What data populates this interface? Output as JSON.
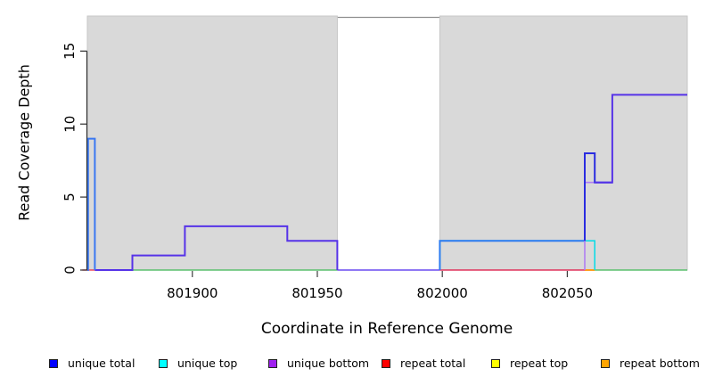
{
  "chart_data": {
    "type": "line",
    "subtype": "step-coverage",
    "title": "",
    "xlabel": "Coordinate in Reference Genome",
    "ylabel": "Read Coverage Depth",
    "xlim": [
      801858,
      802098
    ],
    "ylim": [
      0,
      17.4
    ],
    "xticks": [
      801900,
      801950,
      802000,
      802050
    ],
    "yticks": [
      0,
      5,
      10,
      15
    ],
    "grid": false,
    "shaded_regions": {
      "color": "#d9d9d9",
      "border_color": "#c6c6c6",
      "ranges": [
        [
          801858,
          801958
        ],
        [
          801999,
          802098
        ]
      ]
    },
    "gap_region": [
      801958,
      801999
    ],
    "top_line_color": "#8f8f8f",
    "series": [
      {
        "name": "unique total",
        "color": "#0000FF",
        "step_points": [
          [
            801858,
            9
          ],
          [
            801861,
            0
          ],
          [
            801876,
            1
          ],
          [
            801897,
            3
          ],
          [
            801938,
            2
          ],
          [
            801958,
            0
          ],
          [
            801999,
            2
          ],
          [
            802057,
            8
          ],
          [
            802061,
            6
          ],
          [
            802068,
            12
          ]
        ],
        "end": 802098
      },
      {
        "name": "unique top",
        "color": "#00FFFF",
        "step_points": [
          [
            801858,
            9
          ],
          [
            801861,
            0
          ],
          [
            801999,
            2
          ],
          [
            802061,
            0
          ]
        ],
        "end": 802098
      },
      {
        "name": "unique bottom",
        "color": "#A020F0",
        "step_points": [
          [
            801858,
            0
          ],
          [
            801876,
            1
          ],
          [
            801897,
            3
          ],
          [
            801938,
            2
          ],
          [
            801958,
            0
          ],
          [
            802057,
            6
          ],
          [
            802068,
            12
          ]
        ],
        "end": 802098
      },
      {
        "name": "repeat total",
        "color": "#FF0000",
        "step_points": [
          [
            801858,
            0
          ]
        ],
        "end": 802098
      },
      {
        "name": "repeat top",
        "color": "#FFFF00",
        "step_points": [
          [
            801858,
            0
          ]
        ],
        "end": 802098
      },
      {
        "name": "repeat bottom",
        "color": "#FFA500",
        "step_points": [
          [
            801858,
            0
          ]
        ],
        "end": 802098
      }
    ],
    "draw_lines": [
      {
        "name": "baseline-red-left",
        "color": "#ef3b4c",
        "width": 1.4,
        "points": [
          [
            801856,
            0
          ]
        ],
        "end": 801861
      },
      {
        "name": "baseline-green-left",
        "color": "#5abf6e",
        "width": 1.4,
        "points": [
          [
            801861,
            0
          ]
        ],
        "end": 801958
      },
      {
        "name": "gap-zero-violet",
        "color": "#6a4af0",
        "width": 1.6,
        "points": [
          [
            801958,
            0
          ]
        ],
        "end": 801999
      },
      {
        "name": "baseline-red-right",
        "color": "#e0335c",
        "width": 1.4,
        "points": [
          [
            801999,
            0
          ]
        ],
        "end": 802057
      },
      {
        "name": "baseline-orange",
        "color": "#ff9d1c",
        "width": 2,
        "points": [
          [
            802057,
            0
          ]
        ],
        "end": 802061
      },
      {
        "name": "baseline-green-right",
        "color": "#5abf6e",
        "width": 1.4,
        "points": [
          [
            802061,
            0
          ]
        ],
        "end": 802098
      },
      {
        "name": "cyan-top-right",
        "color": "#10dce6",
        "width": 1.6,
        "points": [
          [
            801999,
            0
          ],
          [
            801999,
            2
          ],
          [
            802061,
            0
          ]
        ],
        "end": null
      },
      {
        "name": "blue-total-2level",
        "color": "#2e7bf0",
        "width": 2,
        "points": [
          [
            801999,
            0
          ],
          [
            801999,
            2
          ]
        ],
        "end": 802057
      },
      {
        "name": "violet-bottom-6step",
        "color": "#b07ef2",
        "width": 1.6,
        "points": [
          [
            802057,
            0
          ],
          [
            802057,
            6
          ]
        ],
        "end": 802061
      },
      {
        "name": "blue-total-8-6step",
        "color": "#2a2ce0",
        "width": 2,
        "points": [
          [
            802057,
            2
          ],
          [
            802057,
            8
          ],
          [
            802061,
            6
          ]
        ],
        "end": 802068
      },
      {
        "name": "violet-left-steps",
        "color": "#5633e8",
        "width": 2,
        "points": [
          [
            801861,
            0
          ],
          [
            801876,
            1
          ],
          [
            801897,
            3
          ],
          [
            801938,
            2
          ],
          [
            801958,
            0
          ]
        ],
        "end": 801958
      },
      {
        "name": "blue-spike",
        "color": "#3a78f2",
        "width": 2,
        "points": [
          [
            801858,
            0
          ],
          [
            801858.3,
            9
          ],
          [
            801861,
            0
          ]
        ],
        "end": null
      },
      {
        "name": "violet-final-12level",
        "color": "#5633e8",
        "width": 2,
        "points": [
          [
            802061,
            6
          ],
          [
            802068,
            12
          ]
        ],
        "end": 802098
      }
    ]
  },
  "legend": {
    "items": [
      {
        "label": "unique total",
        "color": "#0000FF"
      },
      {
        "label": "unique top",
        "color": "#00FFFF"
      },
      {
        "label": "unique bottom",
        "color": "#A020F0"
      },
      {
        "label": "repeat total",
        "color": "#FF0000"
      },
      {
        "label": "repeat top",
        "color": "#FFFF00"
      },
      {
        "label": "repeat bottom",
        "color": "#FFA500"
      }
    ]
  }
}
